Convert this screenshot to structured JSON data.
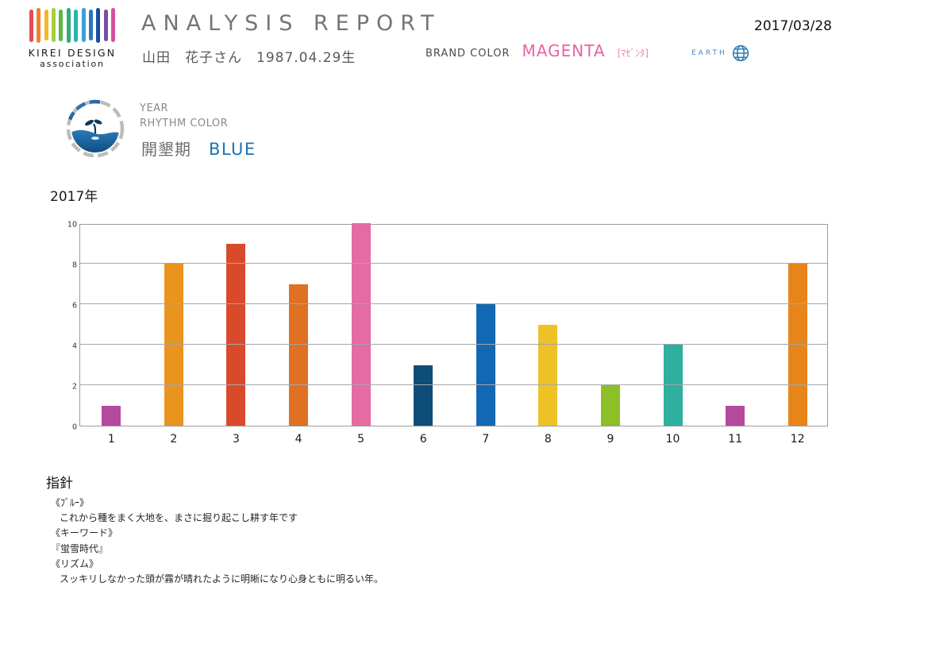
{
  "header": {
    "logo": {
      "name": "KIREI DESIGN",
      "sub": "association",
      "stroke_colors": [
        "#e84b5a",
        "#f08228",
        "#f3b72b",
        "#a8cf3e",
        "#5cb847",
        "#2fae7a",
        "#27b3b0",
        "#3aa0d8",
        "#2a76c0",
        "#1a4e9c",
        "#7a4ea0",
        "#d94f9e"
      ],
      "stroke_heights": [
        41,
        44,
        39,
        43,
        40,
        44,
        41,
        43,
        39,
        44,
        40,
        43
      ]
    },
    "title": "ANALYSIS REPORT",
    "subject": "山田　花子さん　1987.04.29生",
    "brand_color": {
      "label": "BRAND COLOR",
      "value": "MAGENTA",
      "kana": "[ﾏｾﾞﾝﾀ]",
      "value_color": "#e763a4",
      "kana_color": "#ef86b5"
    },
    "earth_label": "EARTH",
    "earth_color": "#2e7cb8",
    "date": "2017/03/28"
  },
  "rhythm": {
    "line1": "YEAR",
    "line2": "RHYTHM COLOR",
    "period": "開墾期",
    "color_name": "BLUE",
    "color_value": "#1a72b8"
  },
  "chart_data": {
    "type": "bar",
    "title": "2017年",
    "xlabel": "",
    "ylabel": "",
    "categories": [
      "1",
      "2",
      "3",
      "4",
      "5",
      "6",
      "7",
      "8",
      "9",
      "10",
      "11",
      "12"
    ],
    "values": [
      1,
      8,
      9,
      7,
      10,
      3,
      6,
      5,
      2,
      4,
      1,
      8
    ],
    "bar_colors": [
      "#b34a9c",
      "#e8941f",
      "#d94a2b",
      "#e07022",
      "#e56ba3",
      "#0e4d78",
      "#1268b2",
      "#eec227",
      "#8cbf28",
      "#2eaf9f",
      "#b34a9c",
      "#e8851a"
    ],
    "ylim": [
      0,
      10
    ],
    "yticks": [
      0,
      2,
      4,
      6,
      8,
      10
    ],
    "grid": true,
    "legend": false
  },
  "guideline": {
    "heading": "指針",
    "lines": [
      {
        "text": "《ﾌﾞﾙｰ》",
        "indent": false
      },
      {
        "text": "これから種をまく大地を、まさに掘り起こし耕す年です",
        "indent": true
      },
      {
        "text": "《キーワード》",
        "indent": false
      },
      {
        "text": "『蛍雪時代』",
        "indent": false
      },
      {
        "text": "《リズム》",
        "indent": false
      },
      {
        "text": "スッキリしなかった頭が霧が晴れたように明晰になり心身ともに明るい年。",
        "indent": true
      }
    ]
  }
}
